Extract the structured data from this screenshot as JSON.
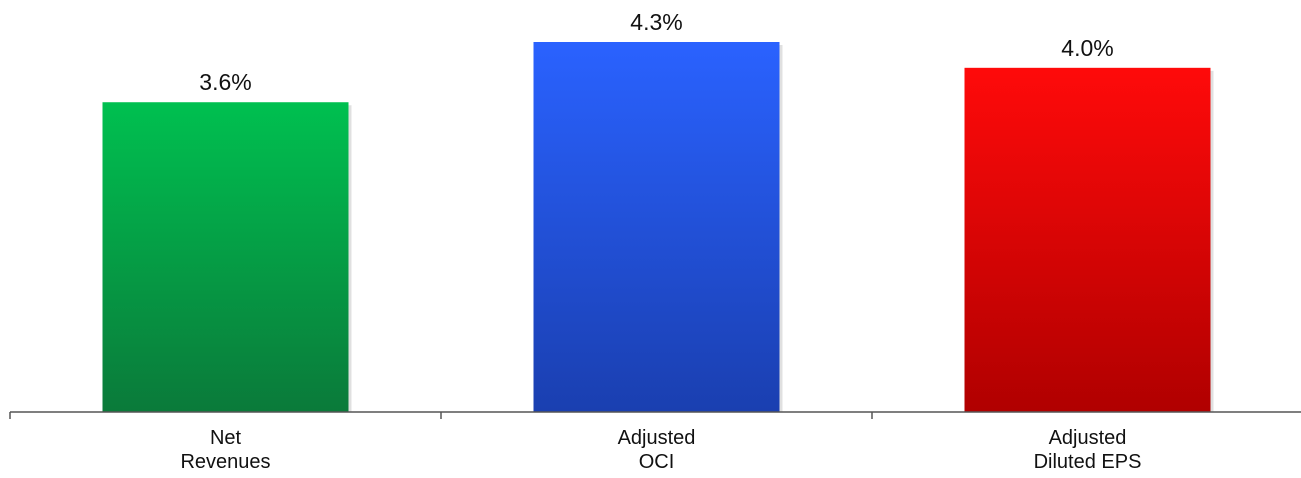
{
  "chart_data": {
    "type": "bar",
    "categories": [
      [
        "Net",
        "Revenues"
      ],
      [
        "Adjusted",
        "OCI"
      ],
      [
        "Adjusted",
        "Diluted EPS"
      ]
    ],
    "values": [
      3.6,
      4.3,
      4.0
    ],
    "data_labels": [
      "3.6%",
      "4.3%",
      "4.0%"
    ],
    "colors": [
      "#00c050",
      "#2a62ff",
      "#ff0a0a"
    ],
    "colors_dark": [
      "#0a7a3a",
      "#1a3fb0",
      "#b00000"
    ],
    "ylim": [
      0,
      4.3
    ],
    "grid": false,
    "legend": "none"
  }
}
